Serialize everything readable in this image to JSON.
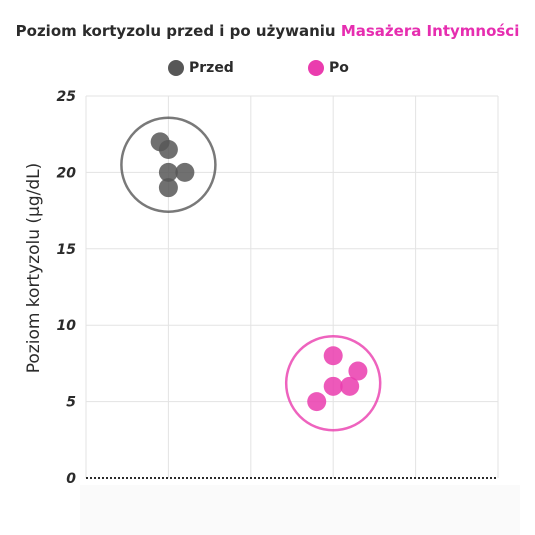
{
  "chart_data": {
    "type": "scatter",
    "title": {
      "prefix": "Poziom kortyzolu przed i po używaniu",
      "highlight": "Masażera Intymności"
    },
    "xlabel": "",
    "ylabel": "Poziom kortyzolu (μg/dL)",
    "ylim": [
      0,
      25
    ],
    "yticks": [
      "0",
      "5",
      "10",
      "15",
      "20",
      "25"
    ],
    "grid": true,
    "legend_position": "top-center",
    "series": [
      {
        "name": "Przed",
        "color": "#575757",
        "points": [
          {
            "x": 0.9,
            "y": 22
          },
          {
            "x": 1.0,
            "y": 21.5
          },
          {
            "x": 1.0,
            "y": 20
          },
          {
            "x": 1.2,
            "y": 20
          },
          {
            "x": 1.0,
            "y": 19
          }
        ],
        "cluster": {
          "cx": 1.0,
          "cy": 20.5
        }
      },
      {
        "name": "Po",
        "color": "#ea3cae",
        "points": [
          {
            "x": 3.0,
            "y": 8
          },
          {
            "x": 3.3,
            "y": 7
          },
          {
            "x": 3.0,
            "y": 6
          },
          {
            "x": 3.2,
            "y": 6
          },
          {
            "x": 2.8,
            "y": 5
          }
        ],
        "cluster": {
          "cx": 3.0,
          "cy": 6.2
        }
      }
    ]
  }
}
